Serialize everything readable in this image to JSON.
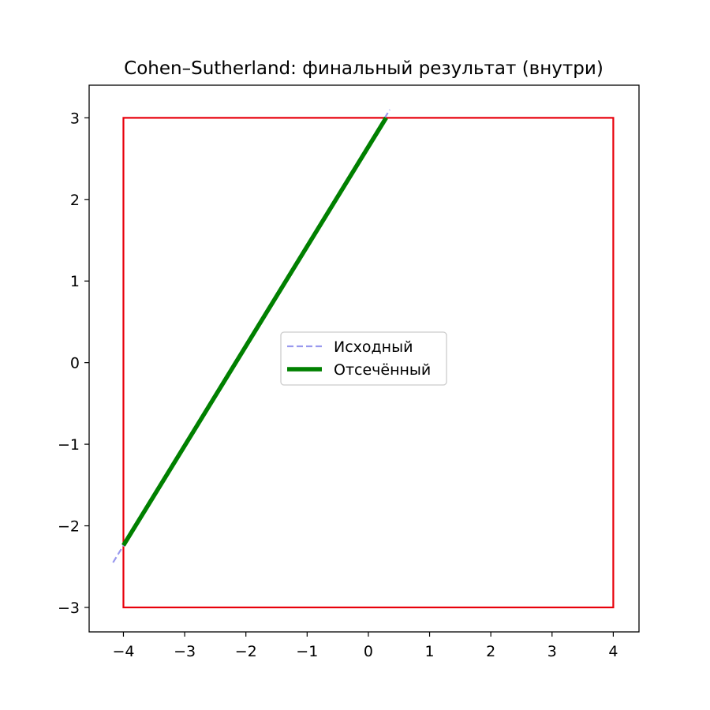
{
  "chart_data": {
    "type": "line",
    "title": "Cohen–Sutherland: финальный результат (внутри)",
    "xlabel": "",
    "ylabel": "",
    "xlim": [
      -4.56,
      4.42
    ],
    "ylim": [
      -3.3,
      3.4
    ],
    "grid": false,
    "legend_position": "center",
    "x_ticks": [
      {
        "value": -4,
        "label": "−4"
      },
      {
        "value": -3,
        "label": "−3"
      },
      {
        "value": -2,
        "label": "−2"
      },
      {
        "value": -1,
        "label": "−1"
      },
      {
        "value": 0,
        "label": "0"
      },
      {
        "value": 1,
        "label": "1"
      },
      {
        "value": 2,
        "label": "2"
      },
      {
        "value": 3,
        "label": "3"
      },
      {
        "value": 4,
        "label": "4"
      }
    ],
    "y_ticks": [
      {
        "value": -3,
        "label": "−3"
      },
      {
        "value": -2,
        "label": "−2"
      },
      {
        "value": -1,
        "label": "−1"
      },
      {
        "value": 0,
        "label": "0"
      },
      {
        "value": 1,
        "label": "1"
      },
      {
        "value": 2,
        "label": "2"
      },
      {
        "value": 3,
        "label": "3"
      }
    ],
    "clip_window": {
      "xmin": -4,
      "xmax": 4,
      "ymin": -3,
      "ymax": 3,
      "color": "#e8000b"
    },
    "series": [
      {
        "name": "Исходный",
        "style": "dashed",
        "color": "#9999ee",
        "x": [
          -4.17,
          0.35
        ],
        "y": [
          -2.45,
          3.1
        ]
      },
      {
        "name": "Отсечённый",
        "style": "solid",
        "color": "#008000",
        "x": [
          -4.0,
          0.29
        ],
        "y": [
          -2.24,
          3.0
        ]
      }
    ]
  }
}
